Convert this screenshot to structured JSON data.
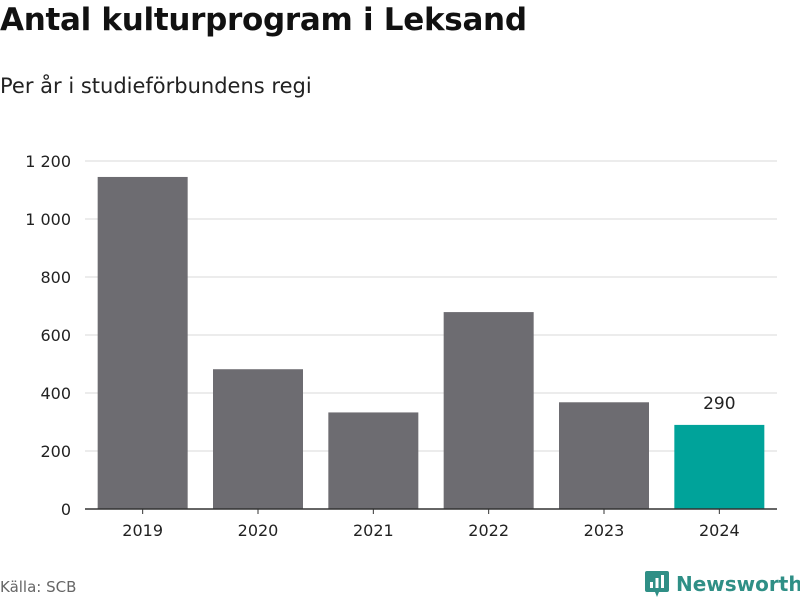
{
  "header": {
    "title": "Antal kulturprogram i Leksand",
    "subtitle": "Per år i studieförbundens regi"
  },
  "footer": {
    "source": "Källa: SCB",
    "brand": "Newsworthy",
    "brand_icon": "newsworthy-logo-icon"
  },
  "colors": {
    "bar": "#6d6c71",
    "highlight": "#00a39a",
    "grid": "#d9d9d9",
    "axis": "#333333",
    "brand": "#2f8f86"
  },
  "chart_data": {
    "type": "bar",
    "title": "Antal kulturprogram i Leksand",
    "subtitle": "Per år i studieförbundens regi",
    "categories": [
      "2019",
      "2020",
      "2021",
      "2022",
      "2023",
      "2024"
    ],
    "values": [
      1145,
      482,
      333,
      679,
      368,
      290
    ],
    "highlight_index": 5,
    "data_labels": [
      {
        "index": 5,
        "text": "290"
      }
    ],
    "ylim": [
      0,
      1200
    ],
    "yticks": [
      0,
      200,
      400,
      600,
      800,
      1000,
      1200
    ],
    "ytick_labels": [
      "0",
      "200",
      "400",
      "600",
      "800",
      "1 000",
      "1 200"
    ],
    "grid": true,
    "xlabel": "",
    "ylabel": ""
  }
}
